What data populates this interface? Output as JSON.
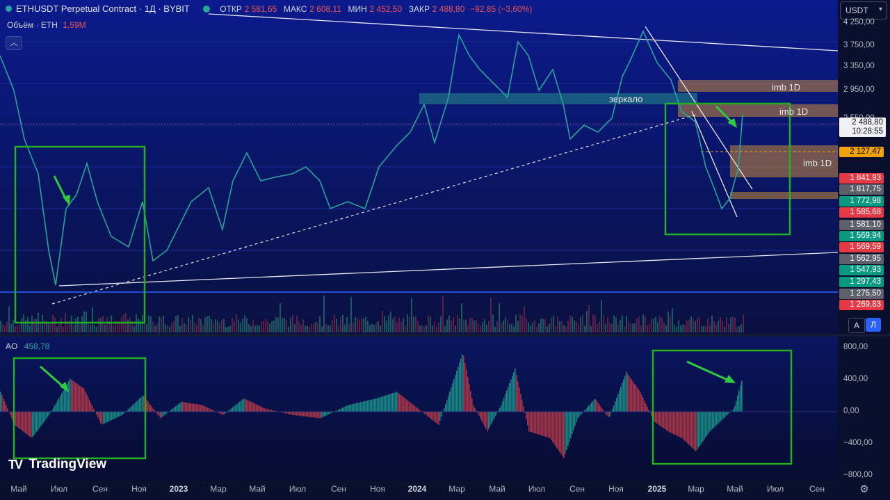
{
  "header": {
    "symbol": "ETHUSDT Perpetual Contract · 1Д · BYBIT",
    "open_label": "ОТКР",
    "open_value": "2 581,65",
    "high_label": "МАКС",
    "high_value": "2 608,11",
    "low_label": "МИН",
    "low_value": "2 452,50",
    "close_label": "ЗАКР",
    "close_value": "2 488,80",
    "change": "−92,85 (−3,60%)",
    "volume_label": "Объём · ETH",
    "volume_value": "1,59M",
    "currency": "USDT"
  },
  "price_axis": {
    "ticks": [
      "4 250,00",
      "3 750,00",
      "3 350,00",
      "2 950,00",
      "2 550,00"
    ],
    "current_price": "2 488,80",
    "countdown": "10:28:55",
    "level_tags": [
      {
        "label": "2 127,47",
        "color": "#f0a30a",
        "text_color": "#000000"
      },
      {
        "label": "1 841,93",
        "color": "#e53946"
      },
      {
        "label": "1 817,75",
        "color": "#5d606b"
      },
      {
        "label": "1 772,98",
        "color": "#089981"
      },
      {
        "label": "1 585,68",
        "color": "#e53946"
      },
      {
        "label": "1 581,10",
        "color": "#5d606b"
      },
      {
        "label": "1 569,94",
        "color": "#089981"
      },
      {
        "label": "1 569,59",
        "color": "#e53946"
      },
      {
        "label": "1 562,95",
        "color": "#5d606b"
      },
      {
        "label": "1 547,93",
        "color": "#089981"
      },
      {
        "label": "1 297,43",
        "color": "#089981"
      },
      {
        "label": "1 275,50",
        "color": "#5d606b"
      },
      {
        "label": "1 269,83",
        "color": "#e53946"
      }
    ],
    "btn_auto": "A",
    "btn_log": "Л"
  },
  "annotations": {
    "mirror": "зеркало",
    "imb_top": "imb 1D",
    "imb_mid": "imb 1D",
    "imb_low": "imb 1D"
  },
  "ao": {
    "label": "AO",
    "value": "458,78",
    "ticks": [
      "800,00",
      "400,00",
      "0,00",
      "−400,00",
      "−800,00"
    ]
  },
  "time_axis": [
    {
      "label": "Май",
      "bold": false
    },
    {
      "label": "Июл",
      "bold": false
    },
    {
      "label": "Сен",
      "bold": false
    },
    {
      "label": "Ноя",
      "bold": false
    },
    {
      "label": "2023",
      "bold": true
    },
    {
      "label": "Мар",
      "bold": false
    },
    {
      "label": "Май",
      "bold": false
    },
    {
      "label": "Июл",
      "bold": false
    },
    {
      "label": "Сен",
      "bold": false
    },
    {
      "label": "Ноя",
      "bold": false
    },
    {
      "label": "2024",
      "bold": true
    },
    {
      "label": "Мар",
      "bold": false
    },
    {
      "label": "Май",
      "bold": false
    },
    {
      "label": "Июл",
      "bold": false
    },
    {
      "label": "Сен",
      "bold": false
    },
    {
      "label": "Ноя",
      "bold": false
    },
    {
      "label": "2025",
      "bold": true
    },
    {
      "label": "Мар",
      "bold": false
    },
    {
      "label": "Май",
      "bold": false
    },
    {
      "label": "Июл",
      "bold": false
    },
    {
      "label": "Сен",
      "bold": false
    }
  ],
  "branding": "TradingView",
  "colors": {
    "up": "#26a69a",
    "down": "#ef5350",
    "box": "#22b022",
    "arrow": "#2ecc40",
    "accent": "#2962ff"
  }
}
